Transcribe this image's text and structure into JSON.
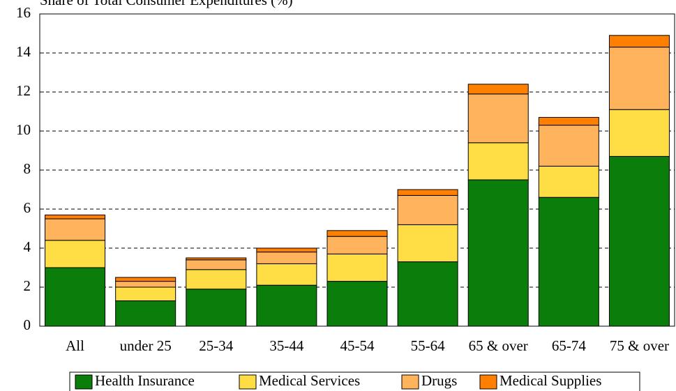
{
  "chart_data": {
    "type": "stacked_bar",
    "title": "Share of Total Consumer Expenditures (%)",
    "categories": [
      "All",
      "under 25",
      "25-34",
      "35-44",
      "45-54",
      "55-64",
      "65 & over",
      "65-74",
      "75 & over"
    ],
    "series": [
      {
        "name": "Health Insurance",
        "color": "#0a7d0a",
        "values": [
          3.0,
          1.3,
          1.9,
          2.1,
          2.3,
          3.3,
          7.5,
          6.6,
          8.7
        ]
      },
      {
        "name": "Medical Services",
        "color": "#ffdd44",
        "values": [
          1.4,
          0.7,
          1.0,
          1.1,
          1.4,
          1.9,
          1.9,
          1.6,
          2.4
        ]
      },
      {
        "name": "Drugs",
        "color": "#ffb35c",
        "values": [
          1.1,
          0.3,
          0.5,
          0.6,
          0.9,
          1.5,
          2.5,
          2.1,
          3.2
        ]
      },
      {
        "name": "Medical Supplies",
        "color": "#ff7f00",
        "values": [
          0.2,
          0.2,
          0.1,
          0.2,
          0.3,
          0.3,
          0.5,
          0.4,
          0.6
        ]
      }
    ],
    "ylim": [
      0,
      16
    ],
    "yticks": [
      0,
      2,
      4,
      6,
      8,
      10,
      12,
      14,
      16
    ],
    "grid": true,
    "legend": "bottom"
  }
}
